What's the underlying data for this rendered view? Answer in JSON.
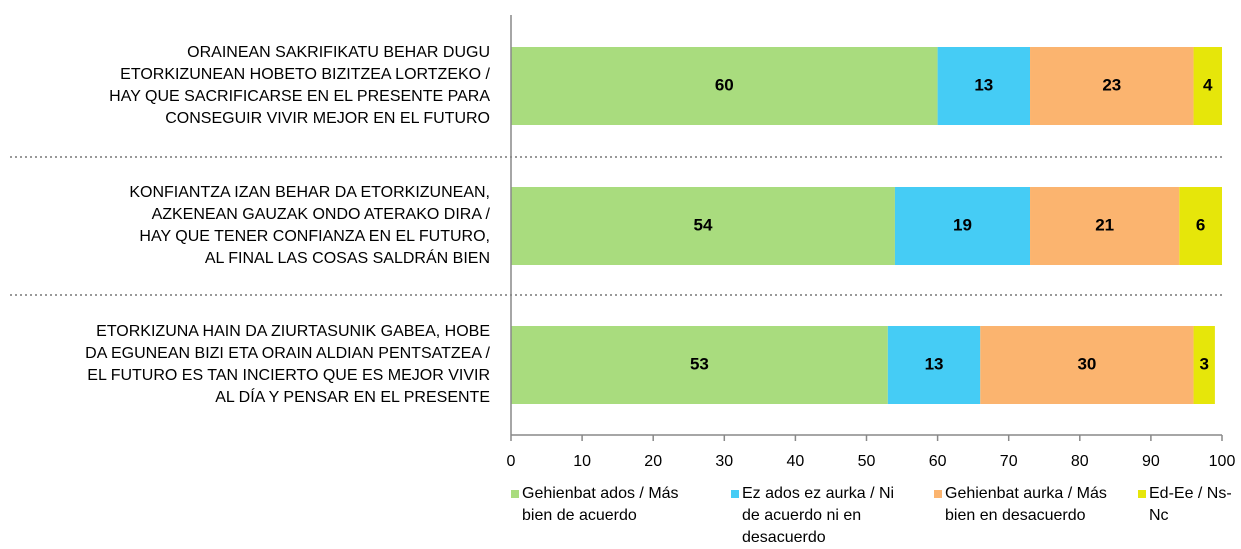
{
  "chart_data": {
    "type": "stacked_barh",
    "categories": [
      [
        "ORAINEAN SAKRIFIKATU BEHAR DUGU",
        "ETORKIZUNEAN HOBETO BIZITZEA LORTZEKO /",
        "HAY QUE SACRIFICARSE EN EL PRESENTE PARA",
        "CONSEGUIR VIVIR MEJOR EN EL FUTURO"
      ],
      [
        "KONFIANTZA IZAN BEHAR DA ETORKIZUNEAN,",
        "AZKENEAN GAUZAK ONDO ATERAKO DIRA /",
        "HAY QUE TENER CONFIANZA EN EL FUTURO,",
        "AL FINAL LAS COSAS SALDRÁN BIEN"
      ],
      [
        "ETORKIZUNA HAIN DA ZIURTASUNIK GABEA, HOBE",
        "DA EGUNEAN BIZI ETA ORAIN ALDIAN PENTSATZEA /",
        "EL FUTURO ES TAN INCIERTO QUE ES MEJOR VIVIR",
        "AL DÍA Y PENSAR EN EL PRESENTE"
      ]
    ],
    "series": [
      {
        "name": "Gehienbat ados / Más bien de acuerdo",
        "color": "#a9dc7e",
        "values": [
          60,
          54,
          53
        ]
      },
      {
        "name": "Ez ados ez aurka / Ni de acuerdo ni en desacuerdo",
        "color": "#45ccf5",
        "values": [
          13,
          19,
          13
        ]
      },
      {
        "name": "Gehienbat aurka / Más bien en desacuerdo",
        "color": "#fbb46f",
        "values": [
          23,
          21,
          30
        ]
      },
      {
        "name": "Ed-Ee / Ns-Nc",
        "color": "#e6e60a",
        "values": [
          4,
          6,
          3
        ]
      }
    ],
    "xlim": [
      0,
      100
    ],
    "xticks": [
      0,
      10,
      20,
      30,
      40,
      50,
      60,
      70,
      80,
      90,
      100
    ]
  }
}
